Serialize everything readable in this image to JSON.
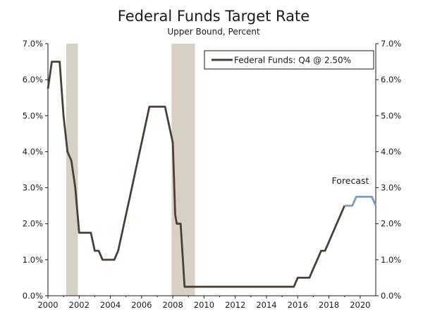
{
  "chart_data": {
    "type": "line",
    "title": "Federal Funds Target Rate",
    "subtitle": "Upper Bound, Percent",
    "xlim": [
      2000,
      2021.0
    ],
    "ylim": [
      0,
      7
    ],
    "x_ticks": [
      2000,
      2002,
      2004,
      2006,
      2008,
      2010,
      2012,
      2014,
      2016,
      2018,
      2020
    ],
    "x_tick_labels": [
      "2000",
      "2002",
      "2004",
      "2006",
      "2008",
      "2010",
      "2012",
      "2014",
      "2016",
      "2018",
      "2020"
    ],
    "y_ticks": [
      0,
      1,
      2,
      3,
      4,
      5,
      6,
      7
    ],
    "y_tick_labels": [
      "0.0%",
      "1.0%",
      "2.0%",
      "3.0%",
      "4.0%",
      "5.0%",
      "6.0%",
      "7.0%"
    ],
    "recessions": [
      [
        2001.17,
        2001.92
      ],
      [
        2007.92,
        2009.42
      ]
    ],
    "legend": "Federal Funds: Q4 @ 2.50%",
    "annotation": "Forecast",
    "series": [
      {
        "name": "Federal Funds",
        "color": "#4a4038",
        "points": [
          [
            2000.0,
            5.75
          ],
          [
            2000.25,
            6.5
          ],
          [
            2000.5,
            6.5
          ],
          [
            2000.75,
            6.5
          ],
          [
            2001.0,
            5.0
          ],
          [
            2001.25,
            4.0
          ],
          [
            2001.5,
            3.75
          ],
          [
            2001.75,
            3.0
          ],
          [
            2002.0,
            1.75
          ],
          [
            2002.5,
            1.75
          ],
          [
            2002.75,
            1.75
          ],
          [
            2003.0,
            1.25
          ],
          [
            2003.25,
            1.25
          ],
          [
            2003.5,
            1.0
          ],
          [
            2003.75,
            1.0
          ],
          [
            2004.0,
            1.0
          ],
          [
            2004.25,
            1.0
          ],
          [
            2004.5,
            1.25
          ],
          [
            2004.75,
            1.75
          ],
          [
            2005.0,
            2.25
          ],
          [
            2005.25,
            2.75
          ],
          [
            2005.5,
            3.25
          ],
          [
            2005.75,
            3.75
          ],
          [
            2006.0,
            4.25
          ],
          [
            2006.25,
            4.75
          ],
          [
            2006.5,
            5.25
          ],
          [
            2006.75,
            5.25
          ],
          [
            2007.0,
            5.25
          ],
          [
            2007.25,
            5.25
          ],
          [
            2007.5,
            5.25
          ],
          [
            2007.75,
            4.75
          ],
          [
            2008.0,
            4.25
          ],
          [
            2008.15,
            2.25
          ],
          [
            2008.25,
            2.0
          ],
          [
            2008.5,
            2.0
          ],
          [
            2008.75,
            0.25
          ],
          [
            2009.0,
            0.25
          ],
          [
            2010.0,
            0.25
          ],
          [
            2011.0,
            0.25
          ],
          [
            2012.0,
            0.25
          ],
          [
            2013.0,
            0.25
          ],
          [
            2014.0,
            0.25
          ],
          [
            2015.0,
            0.25
          ],
          [
            2015.75,
            0.25
          ],
          [
            2016.0,
            0.5
          ],
          [
            2016.5,
            0.5
          ],
          [
            2016.75,
            0.5
          ],
          [
            2017.0,
            0.75
          ],
          [
            2017.25,
            1.0
          ],
          [
            2017.5,
            1.25
          ],
          [
            2017.75,
            1.25
          ],
          [
            2018.0,
            1.5
          ],
          [
            2018.25,
            1.75
          ],
          [
            2018.5,
            2.0
          ],
          [
            2018.75,
            2.25
          ],
          [
            2019.0,
            2.5
          ]
        ]
      },
      {
        "name": "Forecast",
        "color": "#7e9bb9",
        "points": [
          [
            2019.0,
            2.5
          ],
          [
            2019.5,
            2.5
          ],
          [
            2019.75,
            2.75
          ],
          [
            2020.0,
            2.75
          ],
          [
            2020.5,
            2.75
          ],
          [
            2020.75,
            2.75
          ],
          [
            2021.0,
            2.5
          ]
        ]
      }
    ]
  }
}
